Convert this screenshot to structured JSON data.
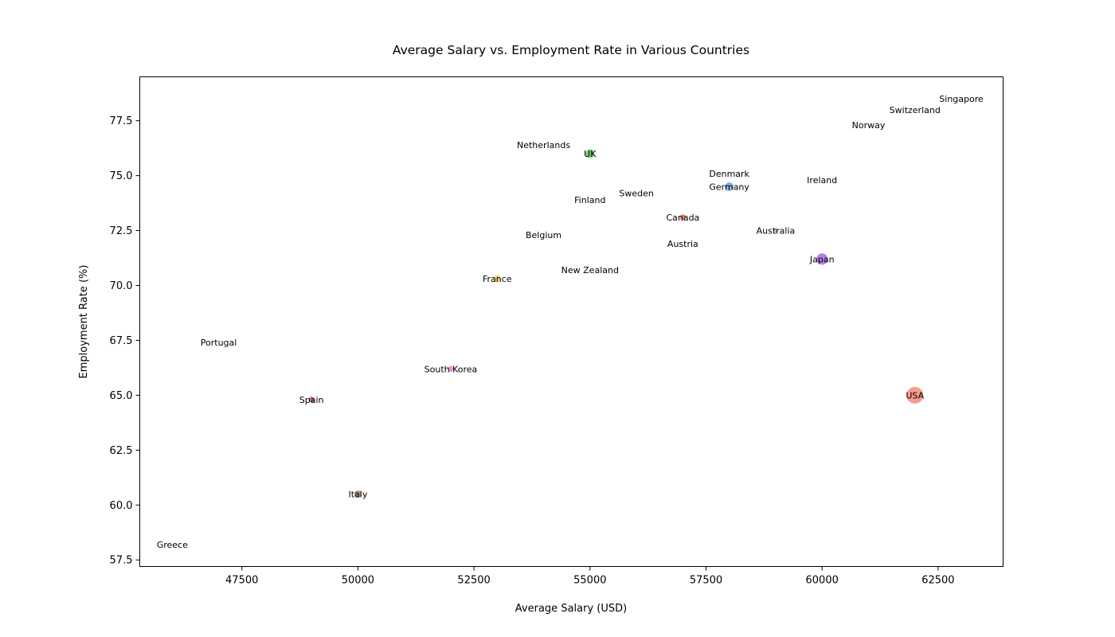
{
  "chart_data": {
    "type": "scatter",
    "title": "Average Salary vs. Employment Rate in Various Countries",
    "xlabel": "Average Salary (USD)",
    "ylabel": "Employment Rate (%)",
    "xlim": [
      45300,
      63900
    ],
    "ylim": [
      57.2,
      79.5
    ],
    "xticks": [
      47500,
      50000,
      52500,
      55000,
      57500,
      60000,
      62500
    ],
    "yticks": [
      57.5,
      60.0,
      62.5,
      65.0,
      67.5,
      70.0,
      72.5,
      75.0,
      77.5
    ],
    "xtick_labels": [
      "47500",
      "50000",
      "52500",
      "55000",
      "57500",
      "60000",
      "62500"
    ],
    "ytick_labels": [
      "57.5",
      "60.0",
      "62.5",
      "65.0",
      "67.5",
      "70.0",
      "72.5",
      "75.0",
      "77.5"
    ],
    "grid": false,
    "points": [
      {
        "label": "USA",
        "x": 62000,
        "y": 65.0,
        "size": 5,
        "color": "#f4836f"
      },
      {
        "label": "Japan",
        "x": 60000,
        "y": 71.2,
        "size": 3,
        "color": "#a05ee0"
      },
      {
        "label": "Germany",
        "x": 58000,
        "y": 74.5,
        "size": 2,
        "color": "#6a9ad8"
      },
      {
        "label": "UK",
        "x": 55000,
        "y": 76.0,
        "size": 2,
        "color": "#52c452"
      },
      {
        "label": "France",
        "x": 53000,
        "y": 70.3,
        "size": 1.5,
        "color": "#f2c44b"
      },
      {
        "label": "Italy",
        "x": 50000,
        "y": 60.5,
        "size": 1.5,
        "color": "#a87460"
      },
      {
        "label": "Canada",
        "x": 57000,
        "y": 73.1,
        "size": 1,
        "color": "#e8624a"
      },
      {
        "label": "South Korea",
        "x": 52000,
        "y": 66.2,
        "size": 1,
        "color": "#e87cc7"
      },
      {
        "label": "Spain",
        "x": 49000,
        "y": 64.8,
        "size": 1,
        "color": "#b05a5a"
      },
      {
        "label": "Australia",
        "x": 59000,
        "y": 72.5,
        "size": 0.6,
        "color": "#c7a0c0"
      },
      {
        "label": "Netherlands",
        "x": 54000,
        "y": 76.4,
        "size": 0,
        "color": "#ffffff"
      },
      {
        "label": "Denmark",
        "x": 58000,
        "y": 75.1,
        "size": 0,
        "color": "#ffffff"
      },
      {
        "label": "Ireland",
        "x": 60000,
        "y": 74.8,
        "size": 0,
        "color": "#ffffff"
      },
      {
        "label": "Sweden",
        "x": 56000,
        "y": 74.2,
        "size": 0,
        "color": "#ffffff"
      },
      {
        "label": "Finland",
        "x": 55000,
        "y": 73.9,
        "size": 0,
        "color": "#ffffff"
      },
      {
        "label": "Belgium",
        "x": 54000,
        "y": 72.3,
        "size": 0,
        "color": "#ffffff"
      },
      {
        "label": "Austria",
        "x": 57000,
        "y": 71.9,
        "size": 0,
        "color": "#ffffff"
      },
      {
        "label": "New Zealand",
        "x": 55000,
        "y": 70.7,
        "size": 0,
        "color": "#ffffff"
      },
      {
        "label": "Portugal",
        "x": 47000,
        "y": 67.4,
        "size": 0,
        "color": "#ffffff"
      },
      {
        "label": "Greece",
        "x": 46000,
        "y": 58.2,
        "size": 0,
        "color": "#ffffff"
      },
      {
        "label": "Norway",
        "x": 61000,
        "y": 77.3,
        "size": 0,
        "color": "#ffffff"
      },
      {
        "label": "Switzerland",
        "x": 62000,
        "y": 78.0,
        "size": 0,
        "color": "#ffffff"
      },
      {
        "label": "Singapore",
        "x": 63000,
        "y": 78.5,
        "size": 0,
        "color": "#ffffff"
      }
    ]
  }
}
